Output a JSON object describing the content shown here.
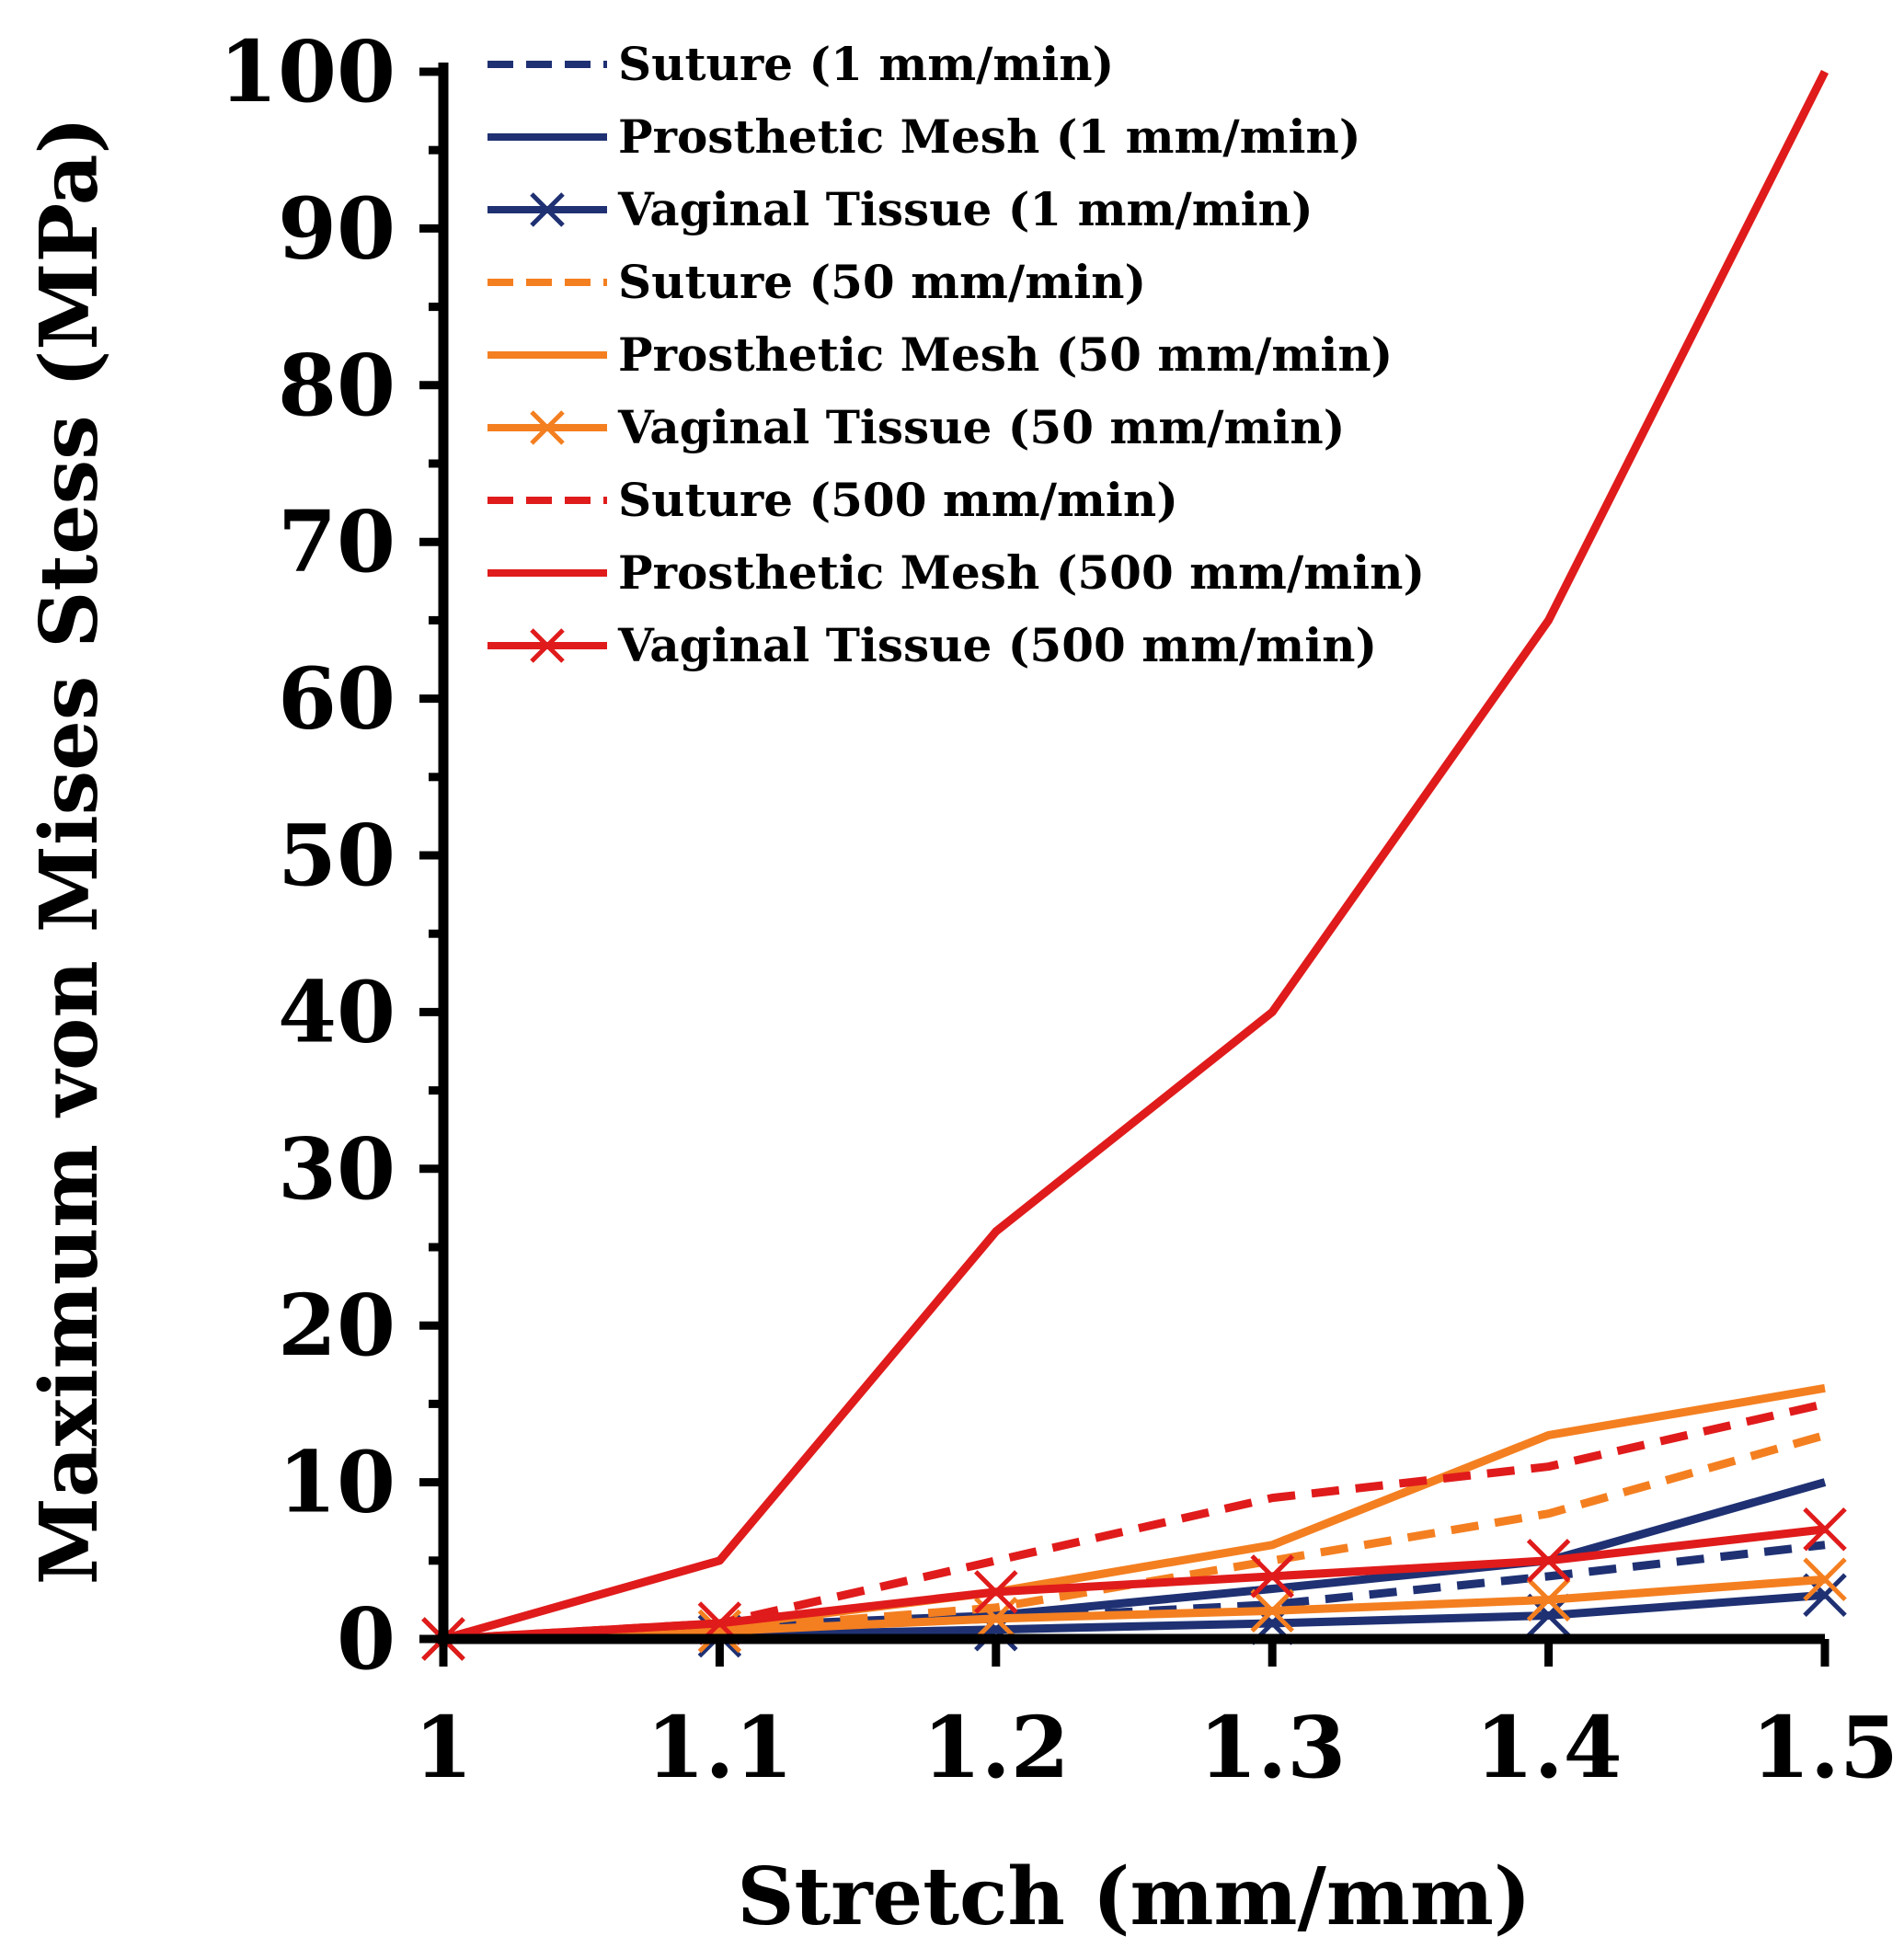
{
  "chart_data": {
    "type": "line",
    "title": "",
    "xlabel": "Stretch (mm/mm)",
    "ylabel": "Maximum von Mises Stess (MPa)",
    "xlim": [
      1,
      1.5
    ],
    "ylim": [
      0,
      100
    ],
    "x": [
      1,
      1.1,
      1.2,
      1.3,
      1.4,
      1.5
    ],
    "x_tick_labels": [
      "1",
      "1.1",
      "1.2",
      "1.3",
      "1.4",
      "1.5"
    ],
    "y_tick_labels": [
      "0",
      "10",
      "20",
      "30",
      "40",
      "50",
      "60",
      "70",
      "80",
      "90",
      "100"
    ],
    "grid": false,
    "legend_position": "top-left",
    "series": [
      {
        "name": "Suture (1 mm/min)",
        "color": "#1f3173",
        "style": "dashed",
        "marker": "none",
        "values": [
          0,
          0.6,
          1.3,
          2.2,
          4.0,
          6.0
        ]
      },
      {
        "name": "Prosthetic Mesh (1 mm/min)",
        "color": "#1f3173",
        "style": "solid",
        "marker": "none",
        "values": [
          0,
          0.8,
          1.5,
          3.2,
          5.0,
          10.0
        ]
      },
      {
        "name": "Vaginal Tissue (1 mm/min)",
        "color": "#1f3173",
        "style": "solid",
        "marker": "x",
        "values": [
          0,
          0.2,
          0.6,
          1.0,
          1.5,
          2.8
        ]
      },
      {
        "name": "Suture (50 mm/min)",
        "color": "#f47f20",
        "style": "dashed",
        "marker": "none",
        "values": [
          0,
          0.6,
          2.0,
          5.0,
          8.0,
          13.0
        ]
      },
      {
        "name": "Prosthetic Mesh (50 mm/min)",
        "color": "#f47f20",
        "style": "solid",
        "marker": "none",
        "values": [
          0,
          0.8,
          3.0,
          6.0,
          13.0,
          16.0
        ]
      },
      {
        "name": "Vaginal Tissue (50 mm/min)",
        "color": "#f47f20",
        "style": "solid",
        "marker": "x",
        "values": [
          0,
          0.5,
          1.3,
          1.8,
          2.5,
          3.8
        ]
      },
      {
        "name": "Suture (500 mm/min)",
        "color": "#e01b1b",
        "style": "dashed",
        "marker": "none",
        "values": [
          0,
          1.0,
          5.0,
          9.0,
          11.0,
          15.0
        ]
      },
      {
        "name": "Prosthetic Mesh (500 mm/min)",
        "color": "#e01b1b",
        "style": "solid",
        "marker": "none",
        "values": [
          0,
          5.0,
          26.0,
          40.0,
          65.0,
          100.0
        ]
      },
      {
        "name": "Vaginal Tissue (500 mm/min)",
        "color": "#e01b1b",
        "style": "solid",
        "marker": "x",
        "values": [
          0,
          1.0,
          3.0,
          4.0,
          5.0,
          7.0
        ]
      }
    ]
  }
}
